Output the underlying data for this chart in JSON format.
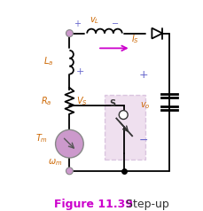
{
  "fig_width": 2.3,
  "fig_height": 2.38,
  "dpi": 100,
  "bg_color": "#ffffff",
  "title": "Figure 11.39",
  "title_bold": "Figure 11.39",
  "subtitle": " Step-up",
  "title_color": "#cc00cc",
  "subtitle_color": "#333333",
  "title_fontsize": 9,
  "wire_color": "#000000",
  "component_color": "#cc6600",
  "label_color": "#cc6600",
  "arrow_color": "#cc00cc",
  "switch_box_color": "#cc99cc",
  "motor_circle_color": "#cc99cc",
  "node_color": "#cc99cc",
  "diode_color": "#000000",
  "capacitor_color": "#000000",
  "plus_minus_color": "#6666cc"
}
